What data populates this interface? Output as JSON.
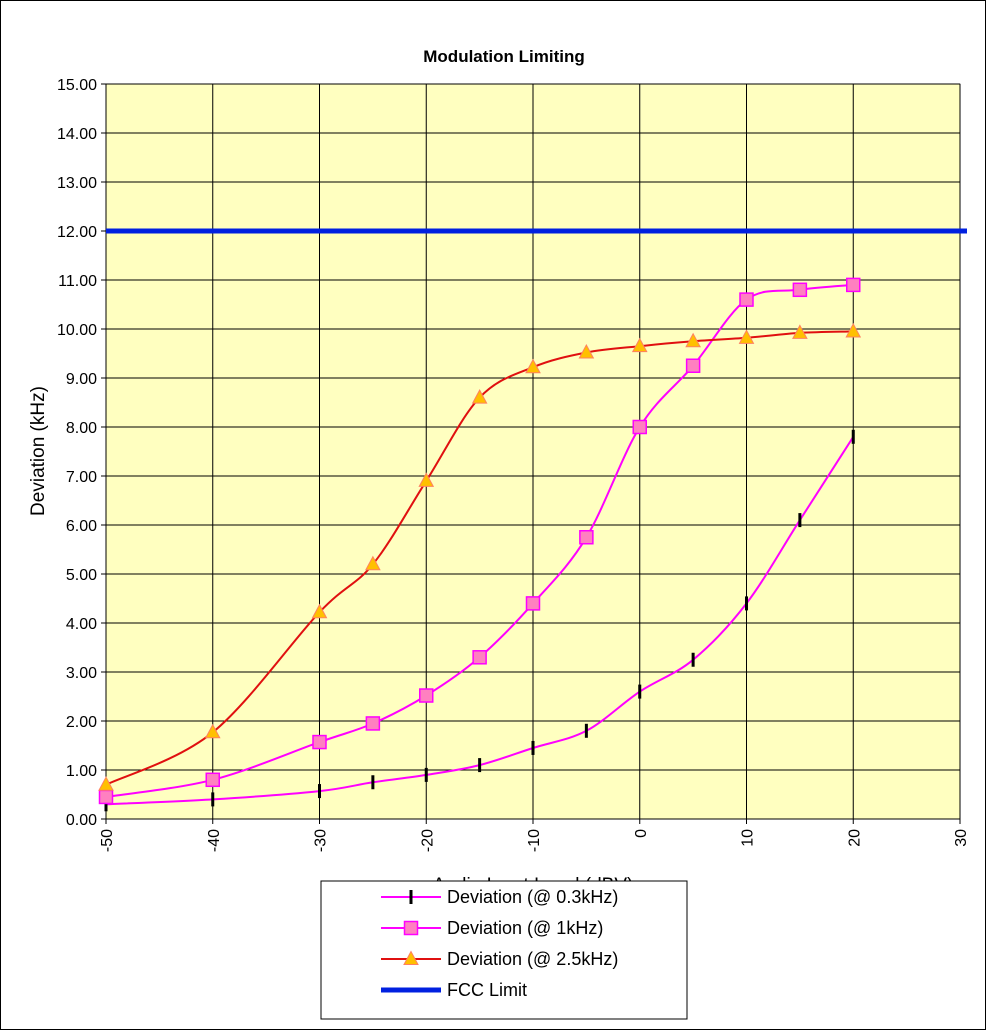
{
  "chart_data": {
    "type": "line",
    "title": "Modulation Limiting",
    "xlabel": "Audio Input Level (dBV)",
    "ylabel": "Deviation (kHz)",
    "xlim": [
      -50,
      30
    ],
    "ylim": [
      0,
      15
    ],
    "x_ticks": [
      -50,
      -40,
      -30,
      -20,
      -10,
      0,
      10,
      20,
      30
    ],
    "x_tick_labels": [
      "-50",
      "-40",
      "-30",
      "-20",
      "-10",
      "0",
      "10",
      "20",
      "30"
    ],
    "y_ticks": [
      0,
      1,
      2,
      3,
      4,
      5,
      6,
      7,
      8,
      9,
      10,
      11,
      12,
      13,
      14,
      15
    ],
    "y_tick_labels": [
      "0.00",
      "1.00",
      "2.00",
      "3.00",
      "4.00",
      "5.00",
      "6.00",
      "7.00",
      "8.00",
      "9.00",
      "10.00",
      "11.00",
      "12.00",
      "13.00",
      "14.00",
      "15.00"
    ],
    "grid": true,
    "plot_background": "#ffffc0",
    "legend_position": "bottom",
    "series": [
      {
        "name": "Deviation (@ 0.3kHz)",
        "marker": "dash",
        "line_color": "#ff00ff",
        "marker_color": "#000000",
        "x": [
          -50,
          -40,
          -30,
          -25,
          -20,
          -15,
          -10,
          -5,
          0,
          5,
          10,
          15,
          20
        ],
        "y": [
          0.3,
          0.4,
          0.57,
          0.75,
          0.9,
          1.1,
          1.45,
          1.8,
          2.6,
          3.25,
          4.4,
          6.1,
          7.8
        ]
      },
      {
        "name": "Deviation (@ 1kHz)",
        "marker": "square",
        "line_color": "#ff00ff",
        "marker_color": "#ff80c0",
        "x": [
          -50,
          -40,
          -30,
          -25,
          -20,
          -15,
          -10,
          -5,
          0,
          5,
          10,
          15,
          20
        ],
        "y": [
          0.45,
          0.8,
          1.57,
          1.95,
          2.52,
          3.3,
          4.4,
          5.75,
          8.0,
          9.25,
          10.6,
          10.8,
          10.9
        ]
      },
      {
        "name": "Deviation (@ 2.5kHz)",
        "marker": "triangle",
        "line_color": "#e01010",
        "marker_color": "#ffc000",
        "x": [
          -50,
          -40,
          -30,
          -25,
          -20,
          -15,
          -10,
          -5,
          0,
          5,
          10,
          15,
          20
        ],
        "y": [
          0.7,
          1.77,
          4.22,
          5.2,
          6.9,
          8.6,
          9.22,
          9.52,
          9.65,
          9.75,
          9.82,
          9.92,
          9.95
        ]
      },
      {
        "name": "FCC Limit",
        "marker": "none",
        "line_color": "#0020e0",
        "x": [
          -50,
          30
        ],
        "y": [
          12,
          12
        ]
      }
    ]
  }
}
